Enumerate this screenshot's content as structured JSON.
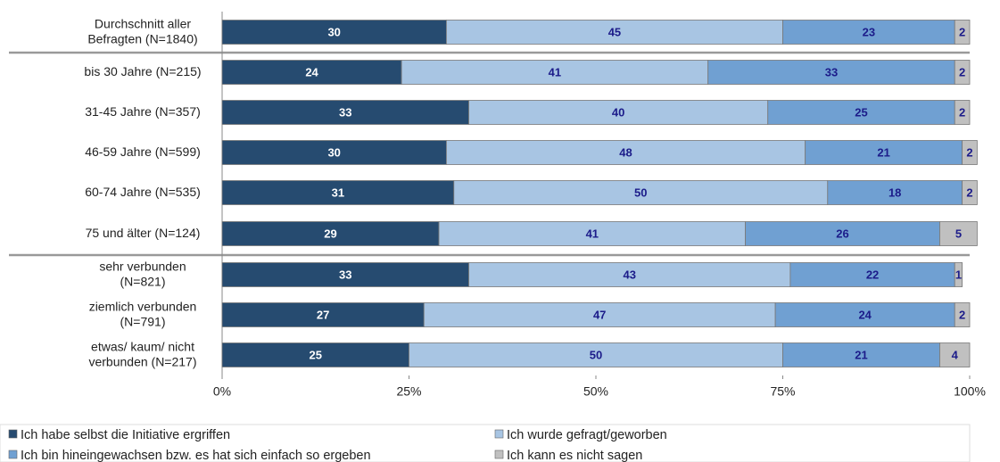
{
  "chart_data": {
    "type": "bar",
    "orientation": "horizontal",
    "stacked": true,
    "categories": [
      "Durchschnitt aller\nBefragten (N=1840)",
      "bis 30 Jahre (N=215)",
      "31-45 Jahre (N=357)",
      "46-59 Jahre (N=599)",
      "60-74 Jahre (N=535)",
      "75 und älter (N=124)",
      "sehr verbunden\n(N=821)",
      "ziemlich verbunden\n(N=791)",
      "etwas/ kaum/ nicht\nverbunden (N=217)"
    ],
    "series": [
      {
        "name": "Ich habe selbst die Initiative ergriffen",
        "color": "#264b70",
        "label_color": "#ffffff",
        "values": [
          30,
          24,
          33,
          30,
          31,
          29,
          33,
          27,
          25
        ]
      },
      {
        "name": "Ich wurde gefragt/geworben",
        "color": "#a8c5e3",
        "label_color": "#1c1c8a",
        "values": [
          45,
          41,
          40,
          48,
          50,
          41,
          43,
          47,
          50
        ]
      },
      {
        "name": "Ich bin hineingewachsen bzw. es hat sich einfach so ergeben",
        "color": "#70a0d2",
        "label_color": "#1c1c8a",
        "values": [
          23,
          33,
          25,
          21,
          18,
          26,
          22,
          24,
          21
        ]
      },
      {
        "name": "Ich kann es nicht sagen",
        "color": "#c0c0c0",
        "label_color": "#1c1c8a",
        "values": [
          2,
          2,
          2,
          2,
          2,
          5,
          1,
          2,
          4
        ]
      }
    ],
    "xlim": [
      0,
      100
    ],
    "xticks": [
      {
        "value": 0,
        "label": "0%"
      },
      {
        "value": 25,
        "label": "25%"
      },
      {
        "value": 50,
        "label": "50%"
      },
      {
        "value": 75,
        "label": "75%"
      },
      {
        "value": 100,
        "label": "100%"
      }
    ],
    "grid": false,
    "legend": "bottom"
  }
}
